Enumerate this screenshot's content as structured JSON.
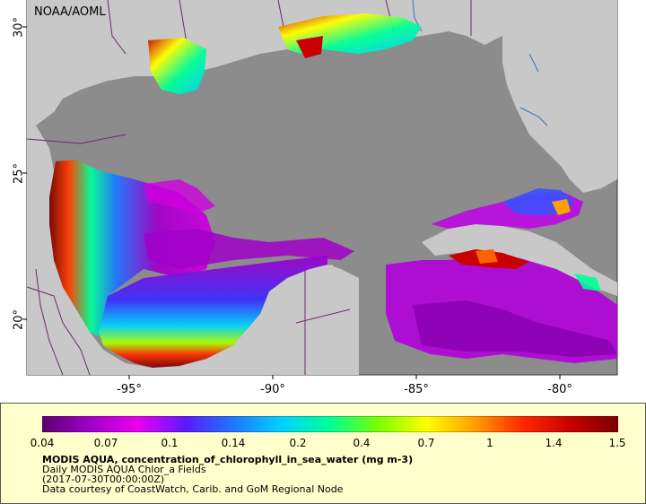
{
  "map": {
    "source_tag": "NOAA/AOML",
    "x_ticks": [
      "-95°",
      "-90°",
      "-85°",
      "-80°"
    ],
    "y_ticks": [
      "30°",
      "25°",
      "20°"
    ],
    "colors": {
      "ocean_nodata": "#8c8c8c",
      "land": "#c8c8c8",
      "border": "#6b2a6b",
      "river": "#3a6fb5"
    }
  },
  "legend": {
    "ticks": [
      "0.04",
      "0.07",
      "0.1",
      "0.14",
      "0.2",
      "0.4",
      "0.7",
      "1",
      "1.4",
      "1.5"
    ],
    "colormap": [
      "#5a0070",
      "#a000c8",
      "#e600f0",
      "#5a1aff",
      "#1e78ff",
      "#00d2ff",
      "#00ff96",
      "#78ff00",
      "#ffff00",
      "#ffa000",
      "#ff2800",
      "#c80000",
      "#7a0000"
    ],
    "title": "MODIS AQUA, concentration_of_chlorophyll_in_sea_water (mg m-3)",
    "subtitle": "Daily MODIS AQUA Chlor_a Fields",
    "date": "(2017-07-30T00:00:00Z)",
    "credit": "Data courtesy of CoastWatch, Carib. and GoM Regional Node"
  }
}
